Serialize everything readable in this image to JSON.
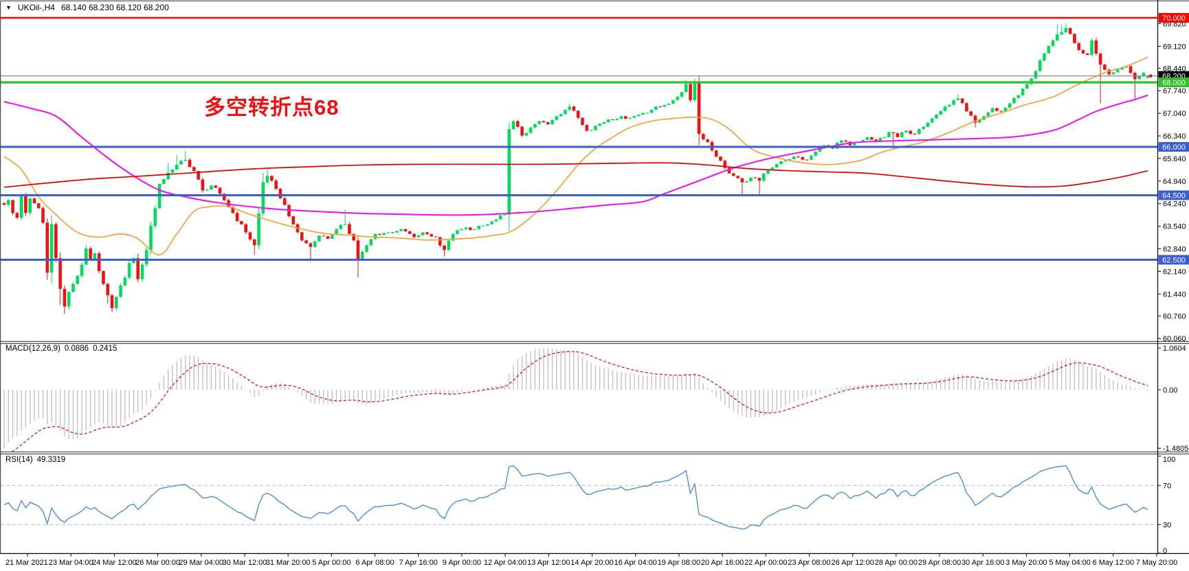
{
  "window": {
    "symbol": "UKOil-,H4",
    "ohlc_text": "68.140 68.230 68.120 68.200",
    "collapse_icon_glyph": "▼"
  },
  "annotation": {
    "text": "多空转折点68",
    "color": "#ee1111"
  },
  "axes": {
    "price_ticks": [
      "69.820",
      "69.120",
      "68.440",
      "67.740",
      "67.040",
      "66.340",
      "65.640",
      "64.940",
      "64.240",
      "63.540",
      "62.840",
      "62.140",
      "61.440",
      "60.760",
      "60.060"
    ],
    "macd_ticks": [
      {
        "text": "1.0604",
        "value": 1.0604
      },
      {
        "text": "0.00",
        "value": 0
      },
      {
        "text": "-1.4805",
        "value": -1.4805
      }
    ],
    "rsi_ticks": [
      {
        "text": "100",
        "value": 100
      },
      {
        "text": "70",
        "value": 70
      },
      {
        "text": "30",
        "value": 30
      },
      {
        "text": "0",
        "value": 0
      }
    ],
    "time_labels": [
      "21 Mar 2021",
      "23 Mar 04:00",
      "24 Mar 12:00",
      "26 Mar 00:00",
      "29 Mar 04:00",
      "30 Mar 12:00",
      "31 Mar 20:00",
      "5 Apr 00:00",
      "6 Apr 08:00",
      "7 Apr 16:00",
      "9 Apr 00:00",
      "12 Apr 04:00",
      "13 Apr 12:00",
      "14 Apr 20:00",
      "16 Apr 04:00",
      "19 Apr 08:00",
      "20 Apr 16:00",
      "22 Apr 00:00",
      "23 Apr 08:00",
      "26 Apr 12:00",
      "28 Apr 00:00",
      "29 Apr 08:00",
      "30 Apr 16:00",
      "3 May 20:00",
      "5 May 04:00",
      "6 May 12:00",
      "7 May 20:00"
    ]
  },
  "levels": [
    {
      "price": 70.0,
      "label": "70.000",
      "color": "#ff0000",
      "width": 2.6,
      "label_bg": "#ff0000",
      "label_fg": "#ffffff",
      "role": "resistance"
    },
    {
      "price": 68.2,
      "label": "68.200",
      "color": "#8a8a8a",
      "width": 1.2,
      "label_bg": "#000000",
      "label_fg": "#ffffff",
      "role": "current-price"
    },
    {
      "price": 68.0,
      "label": "68.000",
      "color": "#2fc227",
      "width": 3.2,
      "label_bg": "#2fc227",
      "label_fg": "#ffffff",
      "role": "pivot"
    },
    {
      "price": 66.0,
      "label": "66.000",
      "color": "#3a5fd3",
      "width": 3.0,
      "label_bg": "#3a5fd3",
      "label_fg": "#ffffff",
      "role": "support"
    },
    {
      "price": 64.5,
      "label": "64.500",
      "color": "#3a5fd3",
      "width": 3.0,
      "label_bg": "#3a5fd3",
      "label_fg": "#ffffff",
      "role": "support"
    },
    {
      "price": 62.5,
      "label": "62.500",
      "color": "#3a5fd3",
      "width": 3.0,
      "label_bg": "#3a5fd3",
      "label_fg": "#ffffff",
      "role": "support"
    }
  ],
  "indicators": {
    "macd": {
      "name": "MACD(12,26,9)",
      "main_value": "0.0886",
      "signal_value": "0.2415",
      "fast": 12,
      "slow": 26,
      "signal_period": 9,
      "scale_max": 1.0604,
      "scale_min": -1.4805,
      "histogram_color": "#c2c2c2",
      "signal_color": "#e01010"
    },
    "rsi": {
      "name": "RSI(14)",
      "value": "49.3319",
      "period": 14,
      "levels": [
        30,
        70
      ],
      "scale_min": 0,
      "scale_max": 100,
      "line_color": "#4a8fd9",
      "level_line_color": "#b9b9b9"
    }
  },
  "chart_data": {
    "type": "candlestick",
    "symbol": "UKOil-",
    "timeframe": "H4",
    "bars": 266,
    "last_ohlc": {
      "open": 68.14,
      "high": 68.23,
      "low": 68.12,
      "close": 68.2
    },
    "bull_color": "#00dc5e",
    "bear_color": "#ee1212",
    "price_path_anchors": [
      [
        0,
        64.2
      ],
      [
        1,
        64.35
      ],
      [
        2,
        63.95
      ],
      [
        3,
        63.8
      ],
      [
        4,
        64.5
      ],
      [
        5,
        63.95
      ],
      [
        6,
        64.4
      ],
      [
        7,
        64.25
      ],
      [
        8,
        64.1
      ],
      [
        9,
        63.65
      ],
      [
        10,
        62.1
      ],
      [
        11,
        63.6
      ],
      [
        12,
        62.55
      ],
      [
        13,
        61.6
      ],
      [
        14,
        61.05
      ],
      [
        15,
        61.5
      ],
      [
        16,
        61.75
      ],
      [
        17,
        62.0
      ],
      [
        18,
        62.35
      ],
      [
        19,
        62.85
      ],
      [
        20,
        62.5
      ],
      [
        21,
        62.7
      ],
      [
        22,
        62.15
      ],
      [
        23,
        61.75
      ],
      [
        24,
        61.4
      ],
      [
        25,
        61.0
      ],
      [
        26,
        61.35
      ],
      [
        27,
        61.7
      ],
      [
        28,
        61.95
      ],
      [
        29,
        62.4
      ],
      [
        30,
        62.55
      ],
      [
        31,
        61.9
      ],
      [
        32,
        62.35
      ],
      [
        33,
        62.8
      ],
      [
        34,
        63.55
      ],
      [
        35,
        64.1
      ],
      [
        36,
        64.85
      ],
      [
        37,
        65.0
      ],
      [
        38,
        65.2
      ],
      [
        40,
        65.45
      ],
      [
        42,
        65.6
      ],
      [
        44,
        65.25
      ],
      [
        46,
        64.65
      ],
      [
        48,
        64.8
      ],
      [
        50,
        64.55
      ],
      [
        53,
        63.95
      ],
      [
        56,
        63.35
      ],
      [
        58,
        62.95
      ],
      [
        60,
        64.9
      ],
      [
        61,
        65.1
      ],
      [
        63,
        64.7
      ],
      [
        65,
        64.2
      ],
      [
        67,
        63.6
      ],
      [
        69,
        63.1
      ],
      [
        71,
        62.9
      ],
      [
        73,
        63.25
      ],
      [
        75,
        63.15
      ],
      [
        77,
        63.45
      ],
      [
        79,
        63.6
      ],
      [
        81,
        63.1
      ],
      [
        82,
        62.5
      ],
      [
        84,
        62.95
      ],
      [
        86,
        63.3
      ],
      [
        89,
        63.35
      ],
      [
        92,
        63.45
      ],
      [
        95,
        63.2
      ],
      [
        97,
        63.35
      ],
      [
        100,
        63.2
      ],
      [
        102,
        62.8
      ],
      [
        104,
        63.3
      ],
      [
        107,
        63.5
      ],
      [
        109,
        63.45
      ],
      [
        112,
        63.6
      ],
      [
        114,
        63.75
      ],
      [
        116,
        63.9
      ],
      [
        117,
        66.55
      ],
      [
        118,
        66.8
      ],
      [
        120,
        66.35
      ],
      [
        122,
        66.6
      ],
      [
        124,
        66.8
      ],
      [
        126,
        66.7
      ],
      [
        128,
        66.95
      ],
      [
        130,
        67.15
      ],
      [
        131,
        67.25
      ],
      [
        133,
        66.9
      ],
      [
        135,
        66.5
      ],
      [
        137,
        66.65
      ],
      [
        140,
        66.85
      ],
      [
        143,
        66.95
      ],
      [
        145,
        66.9
      ],
      [
        148,
        67.05
      ],
      [
        150,
        67.15
      ],
      [
        153,
        67.3
      ],
      [
        155,
        67.45
      ],
      [
        157,
        67.7
      ],
      [
        158,
        67.95
      ],
      [
        159,
        67.45
      ],
      [
        160,
        68.02
      ],
      [
        161,
        66.4
      ],
      [
        163,
        66.15
      ],
      [
        165,
        65.7
      ],
      [
        167,
        65.35
      ],
      [
        169,
        65.1
      ],
      [
        171,
        64.9
      ],
      [
        173,
        65.05
      ],
      [
        175,
        64.95
      ],
      [
        177,
        65.3
      ],
      [
        180,
        65.55
      ],
      [
        183,
        65.7
      ],
      [
        186,
        65.6
      ],
      [
        188,
        65.85
      ],
      [
        190,
        66.05
      ],
      [
        192,
        65.95
      ],
      [
        194,
        66.2
      ],
      [
        196,
        66.05
      ],
      [
        198,
        66.15
      ],
      [
        200,
        66.3
      ],
      [
        202,
        66.15
      ],
      [
        205,
        66.45
      ],
      [
        207,
        66.3
      ],
      [
        209,
        66.5
      ],
      [
        211,
        66.4
      ],
      [
        212,
        66.55
      ],
      [
        214,
        66.75
      ],
      [
        216,
        67.0
      ],
      [
        218,
        67.25
      ],
      [
        220,
        67.45
      ],
      [
        221,
        67.5
      ],
      [
        223,
        67.1
      ],
      [
        225,
        66.75
      ],
      [
        227,
        66.95
      ],
      [
        229,
        67.2
      ],
      [
        231,
        67.1
      ],
      [
        233,
        67.35
      ],
      [
        235,
        67.6
      ],
      [
        237,
        67.95
      ],
      [
        239,
        68.35
      ],
      [
        241,
        68.9
      ],
      [
        243,
        69.3
      ],
      [
        245,
        69.55
      ],
      [
        246,
        69.68
      ],
      [
        247,
        69.5
      ],
      [
        249,
        69.0
      ],
      [
        251,
        68.85
      ],
      [
        252,
        69.3
      ],
      [
        254,
        68.55
      ],
      [
        256,
        68.25
      ],
      [
        258,
        68.4
      ],
      [
        260,
        68.5
      ],
      [
        262,
        68.1
      ],
      [
        264,
        68.3
      ],
      [
        265,
        68.2
      ]
    ],
    "wick_spikes": [
      [
        13,
        "l",
        61.1
      ],
      [
        14,
        "l",
        60.82
      ],
      [
        15,
        "l",
        60.95
      ],
      [
        24,
        "l",
        61.15
      ],
      [
        25,
        "l",
        60.88
      ],
      [
        38,
        "h",
        65.5
      ],
      [
        40,
        "h",
        65.75
      ],
      [
        42,
        "h",
        65.88
      ],
      [
        58,
        "l",
        62.65
      ],
      [
        60,
        "h",
        65.2
      ],
      [
        61,
        "h",
        65.3
      ],
      [
        71,
        "l",
        62.45
      ],
      [
        79,
        "h",
        64.06
      ],
      [
        82,
        "l",
        61.95
      ],
      [
        102,
        "l",
        62.6
      ],
      [
        117,
        "h",
        66.75
      ],
      [
        117,
        "l",
        63.85
      ],
      [
        131,
        "h",
        67.35
      ],
      [
        158,
        "h",
        68.08
      ],
      [
        160,
        "h",
        68.1
      ],
      [
        161,
        "l",
        66.05
      ],
      [
        171,
        "l",
        64.52
      ],
      [
        175,
        "l",
        64.5
      ],
      [
        206,
        "l",
        65.95
      ],
      [
        221,
        "h",
        67.62
      ],
      [
        225,
        "l",
        66.6
      ],
      [
        244,
        "h",
        69.8
      ],
      [
        245,
        "h",
        69.78
      ],
      [
        246,
        "h",
        69.84
      ],
      [
        254,
        "l",
        67.35
      ],
      [
        262,
        "l",
        67.5
      ]
    ],
    "ma_lines": [
      {
        "name": "ma-fast-orange",
        "color": "#f3a23b",
        "width": 1.7,
        "points": [
          [
            0,
            65.7
          ],
          [
            4,
            65.3
          ],
          [
            8,
            64.45
          ],
          [
            12,
            63.9
          ],
          [
            17,
            63.35
          ],
          [
            22,
            63.2
          ],
          [
            27,
            63.3
          ],
          [
            31,
            63.15
          ],
          [
            36,
            62.65
          ],
          [
            40,
            63.3
          ],
          [
            44,
            64.0
          ],
          [
            48,
            64.15
          ],
          [
            52,
            64.15
          ],
          [
            56,
            63.95
          ],
          [
            62,
            63.7
          ],
          [
            66,
            63.55
          ],
          [
            70,
            63.42
          ],
          [
            74,
            63.32
          ],
          [
            80,
            63.26
          ],
          [
            85,
            63.21
          ],
          [
            92,
            63.17
          ],
          [
            98,
            63.11
          ],
          [
            104,
            63.14
          ],
          [
            109,
            63.18
          ],
          [
            113,
            63.25
          ],
          [
            117,
            63.35
          ],
          [
            121,
            63.7
          ],
          [
            125,
            64.2
          ],
          [
            129,
            64.8
          ],
          [
            133,
            65.45
          ],
          [
            137,
            65.95
          ],
          [
            141,
            66.3
          ],
          [
            145,
            66.6
          ],
          [
            150,
            66.8
          ],
          [
            155,
            66.88
          ],
          [
            160,
            66.92
          ],
          [
            164,
            66.85
          ],
          [
            168,
            66.55
          ],
          [
            173,
            65.95
          ],
          [
            178,
            65.7
          ],
          [
            184,
            65.53
          ],
          [
            190,
            65.45
          ],
          [
            194,
            65.48
          ],
          [
            199,
            65.6
          ],
          [
            203,
            65.82
          ],
          [
            208,
            66.0
          ],
          [
            213,
            66.15
          ],
          [
            219,
            66.45
          ],
          [
            225,
            66.8
          ],
          [
            231,
            67.05
          ],
          [
            236,
            67.28
          ],
          [
            243,
            67.55
          ],
          [
            249,
            67.95
          ],
          [
            255,
            68.3
          ],
          [
            260,
            68.5
          ],
          [
            265,
            68.78
          ]
        ]
      },
      {
        "name": "ma-mid-magenta",
        "color": "#ee15ee",
        "width": 2.1,
        "points": [
          [
            0,
            67.4
          ],
          [
            6,
            67.2
          ],
          [
            12,
            66.95
          ],
          [
            18,
            66.3
          ],
          [
            24,
            65.66
          ],
          [
            30,
            65.1
          ],
          [
            36,
            64.66
          ],
          [
            42,
            64.45
          ],
          [
            48,
            64.3
          ],
          [
            56,
            64.16
          ],
          [
            64,
            64.06
          ],
          [
            72,
            64.0
          ],
          [
            82,
            63.94
          ],
          [
            92,
            63.91
          ],
          [
            100,
            63.89
          ],
          [
            108,
            63.89
          ],
          [
            116,
            63.93
          ],
          [
            124,
            64.0
          ],
          [
            132,
            64.1
          ],
          [
            140,
            64.2
          ],
          [
            148,
            64.3
          ],
          [
            153,
            64.55
          ],
          [
            158,
            64.8
          ],
          [
            163,
            65.05
          ],
          [
            168,
            65.3
          ],
          [
            173,
            65.5
          ],
          [
            178,
            65.66
          ],
          [
            184,
            65.82
          ],
          [
            190,
            65.97
          ],
          [
            196,
            66.12
          ],
          [
            202,
            66.17
          ],
          [
            210,
            66.2
          ],
          [
            218,
            66.23
          ],
          [
            226,
            66.26
          ],
          [
            233,
            66.3
          ],
          [
            239,
            66.4
          ],
          [
            244,
            66.55
          ],
          [
            249,
            66.85
          ],
          [
            253,
            67.1
          ],
          [
            258,
            67.32
          ],
          [
            262,
            67.47
          ],
          [
            265,
            67.6
          ]
        ]
      },
      {
        "name": "ma-slow-red",
        "color": "#e00000",
        "width": 1.7,
        "points": [
          [
            0,
            64.75
          ],
          [
            10,
            64.88
          ],
          [
            20,
            65.0
          ],
          [
            30,
            65.08
          ],
          [
            36,
            65.13
          ],
          [
            46,
            65.22
          ],
          [
            58,
            65.32
          ],
          [
            70,
            65.38
          ],
          [
            84,
            65.44
          ],
          [
            98,
            65.46
          ],
          [
            112,
            65.46
          ],
          [
            124,
            65.46
          ],
          [
            136,
            65.48
          ],
          [
            146,
            65.5
          ],
          [
            155,
            65.5
          ],
          [
            163,
            65.44
          ],
          [
            172,
            65.33
          ],
          [
            182,
            65.26
          ],
          [
            192,
            65.22
          ],
          [
            200,
            65.18
          ],
          [
            208,
            65.08
          ],
          [
            216,
            64.97
          ],
          [
            224,
            64.87
          ],
          [
            231,
            64.8
          ],
          [
            238,
            64.76
          ],
          [
            245,
            64.78
          ],
          [
            251,
            64.88
          ],
          [
            257,
            65.02
          ],
          [
            261,
            65.13
          ],
          [
            265,
            65.26
          ]
        ]
      }
    ]
  }
}
